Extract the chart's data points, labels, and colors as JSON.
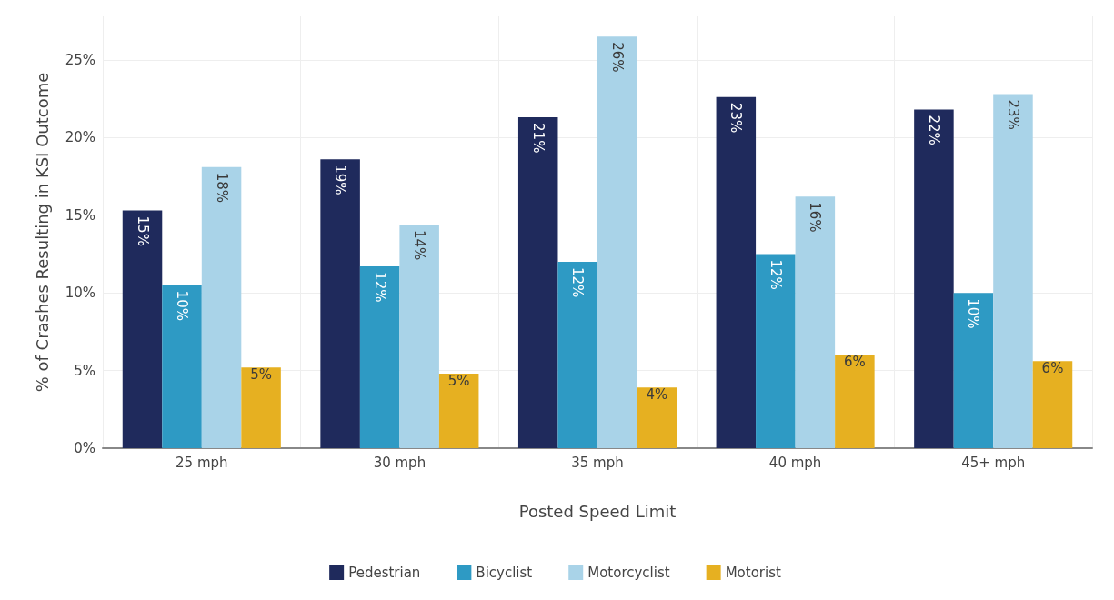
{
  "chart_data": {
    "type": "bar",
    "xlabel": "Posted Speed Limit",
    "ylabel": "% of Crashes Resulting in KSI Outcome",
    "categories": [
      "25 mph",
      "30 mph",
      "35 mph",
      "40 mph",
      "45+ mph"
    ],
    "series": [
      {
        "name": "Pedestrian",
        "color": "#1f2a5c",
        "values": [
          15.3,
          18.6,
          21.3,
          22.6,
          21.8
        ],
        "value_labels": [
          "15%",
          "19%",
          "21%",
          "23%",
          "22%"
        ]
      },
      {
        "name": "Bicyclist",
        "color": "#2e9ac4",
        "values": [
          10.5,
          11.7,
          12.0,
          12.5,
          10.0
        ],
        "value_labels": [
          "10%",
          "12%",
          "12%",
          "12%",
          "10%"
        ]
      },
      {
        "name": "Motorcyclist",
        "color": "#a9d3e8",
        "values": [
          18.1,
          14.4,
          26.5,
          16.2,
          22.8
        ],
        "value_labels": [
          "18%",
          "14%",
          "26%",
          "16%",
          "23%"
        ]
      },
      {
        "name": "Motorist",
        "color": "#e6b021",
        "values": [
          5.2,
          4.8,
          3.9,
          6.0,
          5.6
        ],
        "value_labels": [
          "5%",
          "5%",
          "4%",
          "6%",
          "6%"
        ]
      }
    ],
    "ylim": [
      0,
      27.8
    ],
    "yticks": [
      {
        "value": 0,
        "label": "0%"
      },
      {
        "value": 5,
        "label": "5%"
      },
      {
        "value": 10,
        "label": "10%"
      },
      {
        "value": 15,
        "label": "15%"
      },
      {
        "value": 20,
        "label": "20%"
      },
      {
        "value": 25,
        "label": "25%"
      }
    ],
    "grid": true,
    "legend": "bottom"
  }
}
